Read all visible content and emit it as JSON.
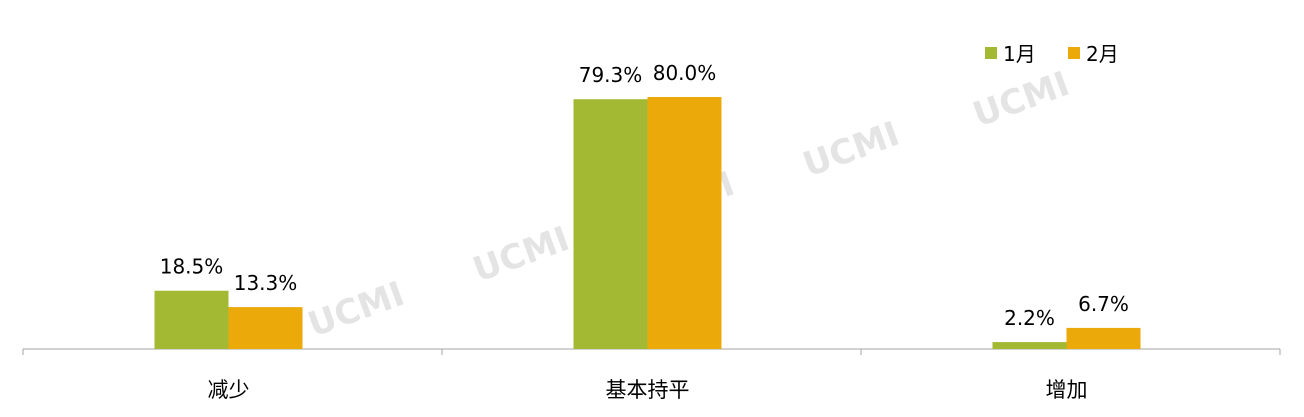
{
  "chart_data": {
    "type": "bar",
    "categories": [
      "减少",
      "基本持平",
      "增加"
    ],
    "series": [
      {
        "name": "1月",
        "values": [
          18.5,
          79.3,
          2.2
        ],
        "labels": [
          "18.5%",
          "79.3%",
          "2.2%"
        ],
        "color": "#A3B934"
      },
      {
        "name": "2月",
        "values": [
          13.3,
          80.0,
          6.7
        ],
        "labels": [
          "13.3%",
          "80.0%",
          "6.7%"
        ],
        "color": "#EBAA0A"
      }
    ],
    "title": "",
    "xlabel": "",
    "ylabel": "",
    "ylim": [
      0,
      100
    ],
    "unit": "%",
    "grid": false,
    "legend": "top-right"
  },
  "watermark": "UCMI"
}
